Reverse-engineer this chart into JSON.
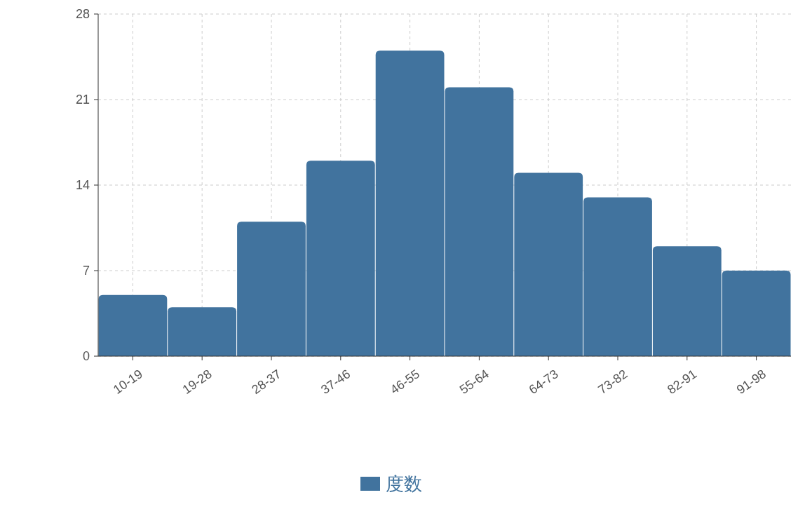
{
  "chart_data": {
    "type": "bar",
    "categories": [
      "10-19",
      "19-28",
      "28-37",
      "37-46",
      "46-55",
      "55-64",
      "64-73",
      "73-82",
      "82-91",
      "91-98"
    ],
    "series": [
      {
        "name": "度数",
        "color": "#41739e",
        "values": [
          5,
          4,
          11,
          16,
          25,
          22,
          15,
          13,
          9,
          7
        ]
      }
    ],
    "ylim": [
      0,
      28
    ],
    "yticks": [
      0,
      7,
      14,
      21,
      28
    ],
    "grid": true,
    "legend": "bottom"
  }
}
